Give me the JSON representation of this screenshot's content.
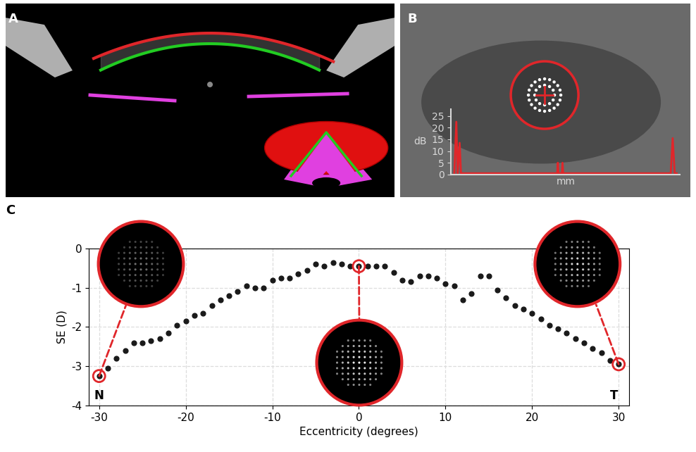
{
  "chart_data": [
    {
      "type": "image",
      "title": "A"
    },
    {
      "type": "line",
      "title": "B",
      "y_label": "dB",
      "x_label": "mm",
      "color": "#e0262a",
      "tick_labels": "y",
      "xlim": [
        -0.5,
        34
      ],
      "ylim": [
        0,
        28
      ],
      "yticks": [
        0,
        5,
        10,
        15,
        20,
        25
      ],
      "x": [
        0,
        0.3,
        0.5,
        0.8,
        1.0,
        1.3,
        15.5,
        15.6,
        15.7,
        16.2,
        16.3,
        16.4,
        32.6,
        32.9,
        33.2,
        33.5
      ],
      "values": [
        0.5,
        22.5,
        0.5,
        13.5,
        0.5,
        0.5,
        0.5,
        5,
        0.5,
        0.5,
        5,
        0.5,
        0.5,
        15.5,
        0.5,
        0.5
      ]
    },
    {
      "type": "scatter",
      "title": "C",
      "x_label": "Eccentricity (degrees)",
      "y_label": "SE (D)",
      "color": "#1a1a1a",
      "grid": true,
      "xlim": [
        -31.2,
        31.2
      ],
      "ylim": [
        -4,
        0
      ],
      "xticks": [
        -30,
        -20,
        -10,
        0,
        10,
        20,
        30
      ],
      "yticks": [
        -4,
        -3,
        -2,
        -1,
        0
      ],
      "x": [
        -30,
        -29,
        -28,
        -27,
        -26,
        -25,
        -24,
        -23,
        -22,
        -21,
        -20,
        -19,
        -18,
        -17,
        -16,
        -15,
        -14,
        -13,
        -12,
        -11,
        -10,
        -9,
        -8,
        -7,
        -6,
        -5,
        -4,
        -3,
        -2,
        -1,
        0,
        1,
        2,
        3,
        4,
        5,
        6,
        7,
        8,
        9,
        10,
        11,
        12,
        13,
        14,
        15,
        16,
        17,
        18,
        19,
        20,
        21,
        22,
        23,
        24,
        25,
        26,
        27,
        28,
        29,
        30
      ],
      "values": [
        -3.25,
        -3.05,
        -2.8,
        -2.6,
        -2.4,
        -2.4,
        -2.35,
        -2.3,
        -2.15,
        -1.95,
        -1.85,
        -1.7,
        -1.65,
        -1.45,
        -1.3,
        -1.2,
        -1.1,
        -0.95,
        -1.0,
        -1.0,
        -0.8,
        -0.75,
        -0.75,
        -0.65,
        -0.55,
        -0.4,
        -0.45,
        -0.35,
        -0.4,
        -0.45,
        -0.45,
        -0.45,
        -0.45,
        -0.45,
        -0.6,
        -0.8,
        -0.85,
        -0.7,
        -0.7,
        -0.75,
        -0.9,
        -0.95,
        -1.3,
        -1.15,
        -0.7,
        -0.7,
        -1.05,
        -1.25,
        -1.45,
        -1.55,
        -1.65,
        -1.8,
        -1.95,
        -2.05,
        -2.15,
        -2.3,
        -2.4,
        -2.55,
        -2.65,
        -2.85,
        -2.95
      ],
      "highlight_x": [
        -30,
        0,
        30
      ],
      "annotations": [
        {
          "text": "N",
          "x": -30,
          "y": -3.75
        },
        {
          "text": "T",
          "x": 29.5,
          "y": -3.75
        }
      ]
    }
  ]
}
